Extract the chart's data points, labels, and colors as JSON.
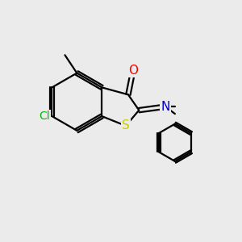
{
  "background_color": "#ebebeb",
  "bond_color": "#000000",
  "atom_colors": {
    "O": "#ff0000",
    "N": "#0000cc",
    "S": "#cccc00",
    "Cl": "#00bb00",
    "C": "#000000"
  },
  "figsize": [
    3.0,
    3.0
  ],
  "dpi": 100,
  "bond_lw": 1.6,
  "font_size": 11
}
